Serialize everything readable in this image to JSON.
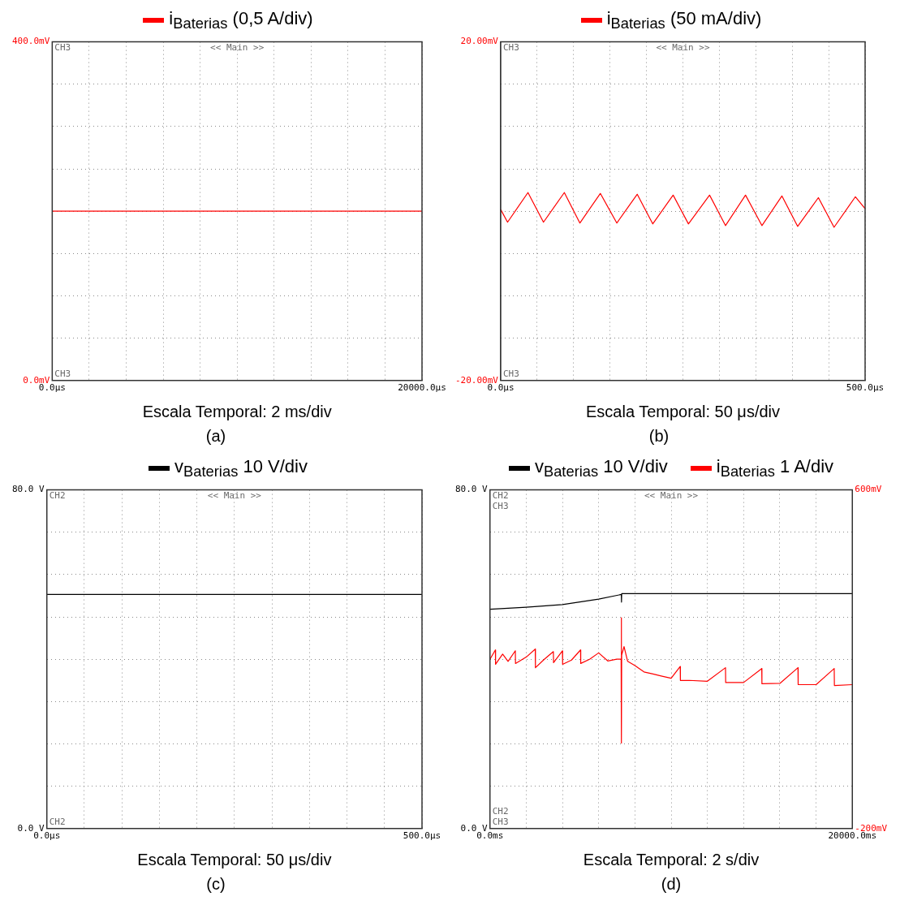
{
  "chart_data": [
    {
      "type": "line",
      "title": "(a)",
      "xlabel": "Escala Temporal: 2 ms/div",
      "legend": "top",
      "grid": true,
      "marker": "none",
      "series": [
        {
          "name": "i$_{Baterias}$ (0,5 A/div)",
          "color": "#ff0000",
          "x": [
            0,
            20000
          ],
          "values": [
            200,
            200
          ]
        }
      ],
      "xlim": [
        0,
        20000
      ],
      "xticks": [
        {
          "value": 0,
          "label": "0.0μs"
        },
        {
          "value": 2000,
          "label": null
        },
        {
          "value": 4000,
          "label": null
        },
        {
          "value": 6000,
          "label": null
        },
        {
          "value": 8000,
          "label": null
        },
        {
          "value": 10000,
          "label": null
        },
        {
          "value": 12000,
          "label": null
        },
        {
          "value": 14000,
          "label": null
        },
        {
          "value": 16000,
          "label": null
        },
        {
          "value": 18000,
          "label": null
        },
        {
          "value": 20000,
          "label": "20000.0μs"
        }
      ],
      "ylim": [
        0,
        400
      ],
      "yticks": [
        {
          "value": 0,
          "label": "0.0mV"
        },
        {
          "value": 50,
          "label": null
        },
        {
          "value": 100,
          "label": null
        },
        {
          "value": 150,
          "label": null
        },
        {
          "value": 200,
          "label": null
        },
        {
          "value": 250,
          "label": null
        },
        {
          "value": 300,
          "label": null
        },
        {
          "value": 350,
          "label": null
        },
        {
          "value": 400,
          "label": "400.0mV"
        }
      ],
      "annotations": [
        "CH3",
        "<< Main >>",
        "CH3"
      ]
    },
    {
      "type": "line",
      "title": "(b)",
      "xlabel": "Escala Temporal: 50 μs/div",
      "legend": "top",
      "grid": true,
      "marker": "none",
      "series": [
        {
          "name": "i$_{Baterias}$ (50 mA/div)",
          "color": "#ff0000",
          "x": [
            0,
            9.4,
            37.4,
            58.7,
            87.3,
            108.6,
            136.7,
            159.3,
            187.3,
            208.6,
            236.6,
            257.6,
            286.6,
            308.5,
            335.9,
            358.5,
            385.9,
            407.5,
            435.9,
            457.4,
            486.6,
            500
          ],
          "values": [
            0.2,
            -1.3,
            2.2,
            -1.3,
            2.2,
            -1.4,
            2.1,
            -1.4,
            2.0,
            -1.5,
            1.9,
            -1.5,
            1.9,
            -1.7,
            1.9,
            -1.7,
            1.8,
            -1.8,
            1.6,
            -1.9,
            1.7,
            0.3
          ]
        }
      ],
      "xlim": [
        0,
        500
      ],
      "xticks": [
        {
          "value": 0,
          "label": "0.0μs"
        },
        {
          "value": 50,
          "label": null
        },
        {
          "value": 100,
          "label": null
        },
        {
          "value": 150,
          "label": null
        },
        {
          "value": 200,
          "label": null
        },
        {
          "value": 250,
          "label": null
        },
        {
          "value": 300,
          "label": null
        },
        {
          "value": 350,
          "label": null
        },
        {
          "value": 400,
          "label": null
        },
        {
          "value": 450,
          "label": null
        },
        {
          "value": 500,
          "label": "500.0μs"
        }
      ],
      "ylim": [
        -20,
        20
      ],
      "yticks": [
        {
          "value": -20,
          "label": "-20.00mV"
        },
        {
          "value": -15,
          "label": null
        },
        {
          "value": -10,
          "label": null
        },
        {
          "value": -5,
          "label": null
        },
        {
          "value": 0,
          "label": null
        },
        {
          "value": 5,
          "label": null
        },
        {
          "value": 10,
          "label": null
        },
        {
          "value": 15,
          "label": null
        },
        {
          "value": 20,
          "label": "20.00mV"
        }
      ],
      "annotations": [
        "CH3",
        "<< Main >>",
        "CH3"
      ]
    },
    {
      "type": "line",
      "title": "(c)",
      "xlabel": "Escala Temporal: 50 μs/div",
      "legend": "top",
      "grid": true,
      "marker": "none",
      "series": [
        {
          "name": "v$_{Baterias}$ 10 V/div",
          "color": "#000000",
          "x": [
            0,
            500
          ],
          "values": [
            55.3,
            55.3
          ]
        }
      ],
      "xlim": [
        0,
        500
      ],
      "xticks": [
        {
          "value": 0,
          "label": "0.0μs"
        },
        {
          "value": 50,
          "label": null
        },
        {
          "value": 100,
          "label": null
        },
        {
          "value": 150,
          "label": null
        },
        {
          "value": 200,
          "label": null
        },
        {
          "value": 250,
          "label": null
        },
        {
          "value": 300,
          "label": null
        },
        {
          "value": 350,
          "label": null
        },
        {
          "value": 400,
          "label": null
        },
        {
          "value": 450,
          "label": null
        },
        {
          "value": 500,
          "label": "500.0μs"
        }
      ],
      "ylim": [
        0,
        80
      ],
      "yticks": [
        {
          "value": 0,
          "label": "0.0 V"
        },
        {
          "value": 10,
          "label": null
        },
        {
          "value": 20,
          "label": null
        },
        {
          "value": 30,
          "label": null
        },
        {
          "value": 40,
          "label": null
        },
        {
          "value": 50,
          "label": null
        },
        {
          "value": 60,
          "label": null
        },
        {
          "value": 70,
          "label": null
        },
        {
          "value": 80,
          "label": "80.0 V"
        }
      ],
      "annotations": [
        "CH2",
        "<< Main >>",
        "CH2"
      ]
    },
    {
      "type": "line",
      "title": "(d)",
      "xlabel": "Escala Temporal: 2 s/div",
      "legend": "top",
      "grid": true,
      "marker": "none",
      "series": [
        {
          "name": "v$_{Baterias}$ 10 V/div",
          "color": "#000000",
          "x": [
            0,
            2000,
            4000,
            6000,
            7250,
            7260,
            7270,
            10000,
            14000,
            20000
          ],
          "values": [
            51.8,
            52.3,
            52.9,
            54.2,
            55.3,
            53.5,
            55.5,
            55.5,
            55.5,
            55.5
          ]
        },
        {
          "name": "i$_{Baterias}$ 1 A/div",
          "color": "#ff0000",
          "axis": "y2",
          "x": [
            0,
            300,
            310,
            700,
            1000,
            1400,
            1410,
            2000,
            2500,
            2510,
            3000,
            3500,
            3510,
            4000,
            4010,
            4500,
            5000,
            5010,
            5500,
            6000,
            6500,
            7000,
            7240,
            7250,
            7260,
            7270,
            7400,
            7600,
            8000,
            8500,
            9000,
            9500,
            10000,
            10500,
            10510,
            11000,
            12000,
            13000,
            13010,
            14000,
            15000,
            15010,
            16000,
            17000,
            17010,
            18000,
            19000,
            19010,
            20000
          ],
          "values": [
            200,
            222,
            188,
            212,
            195,
            220,
            190,
            205,
            224,
            180,
            200,
            218,
            192,
            220,
            188,
            198,
            222,
            190,
            200,
            215,
            196,
            200,
            200,
            298,
            2,
            210,
            230,
            195,
            185,
            170,
            165,
            160,
            155,
            183,
            150,
            150,
            148,
            180,
            145,
            145,
            178,
            142,
            143,
            180,
            140,
            140,
            178,
            138,
            140
          ]
        }
      ],
      "xlim": [
        0,
        20000
      ],
      "xticks": [
        {
          "value": 0,
          "label": "0.0ms"
        },
        {
          "value": 2000,
          "label": null
        },
        {
          "value": 4000,
          "label": null
        },
        {
          "value": 6000,
          "label": null
        },
        {
          "value": 8000,
          "label": null
        },
        {
          "value": 10000,
          "label": null
        },
        {
          "value": 12000,
          "label": null
        },
        {
          "value": 14000,
          "label": null
        },
        {
          "value": 16000,
          "label": null
        },
        {
          "value": 18000,
          "label": null
        },
        {
          "value": 20000,
          "label": "20000.0ms"
        }
      ],
      "ylim": [
        0,
        80
      ],
      "yticks": [
        {
          "value": 0,
          "label": "0.0 V"
        },
        {
          "value": 10,
          "label": null
        },
        {
          "value": 20,
          "label": null
        },
        {
          "value": 30,
          "label": null
        },
        {
          "value": 40,
          "label": null
        },
        {
          "value": 50,
          "label": null
        },
        {
          "value": 60,
          "label": null
        },
        {
          "value": 70,
          "label": null
        },
        {
          "value": 80,
          "label": "80.0 V"
        }
      ],
      "y2lim": [
        -200,
        600
      ],
      "y2ticks": [
        {
          "value": -200,
          "label": "-200mV"
        },
        {
          "value": 600,
          "label": "600mV"
        }
      ],
      "annotations": [
        "CH2",
        "CH3",
        "<< Main >>",
        "CH2",
        "CH3"
      ]
    }
  ]
}
